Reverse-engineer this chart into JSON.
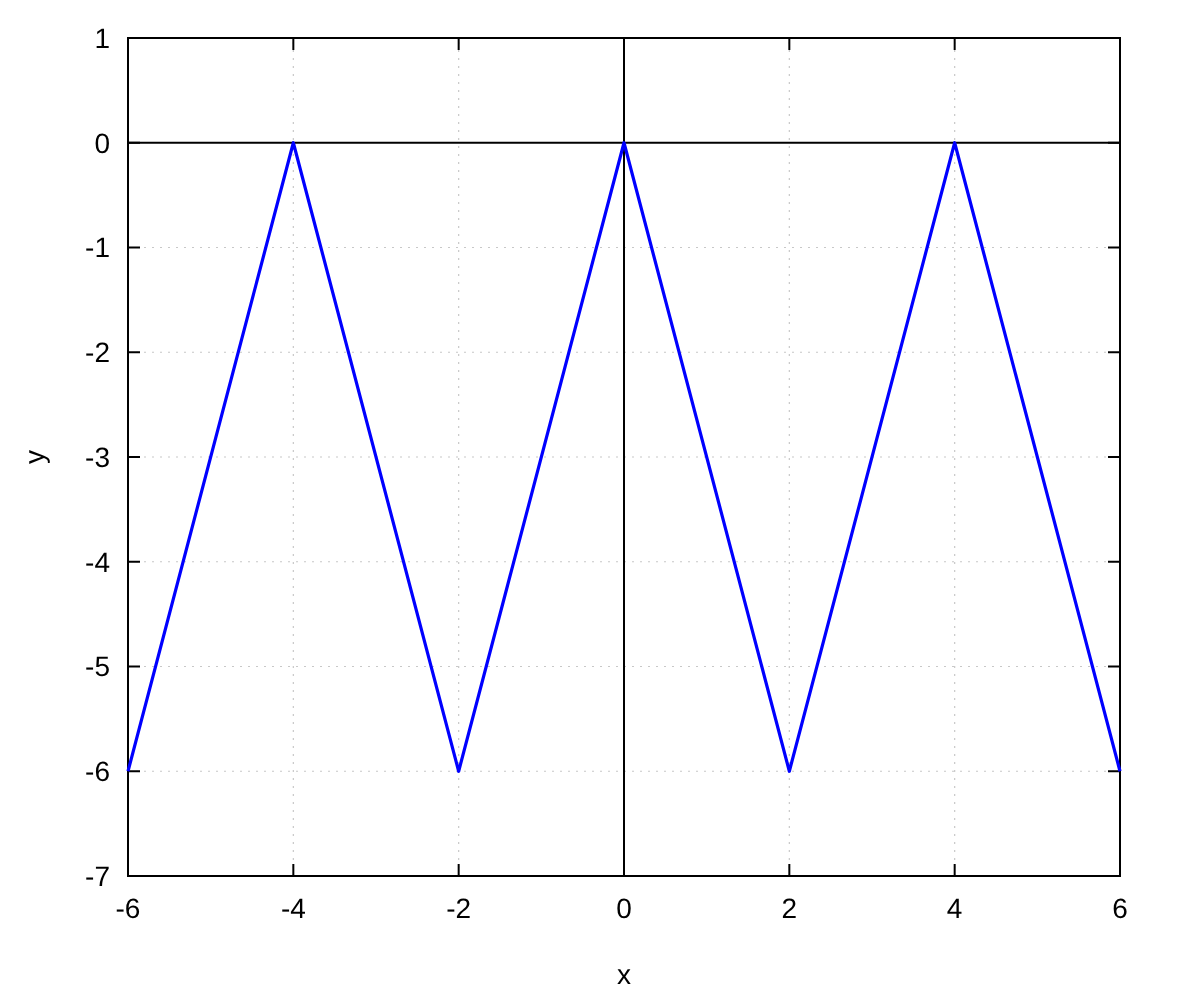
{
  "chart_data": {
    "type": "line",
    "xlabel": "x",
    "ylabel": "y",
    "x": [
      -6,
      -4,
      -2,
      0,
      2,
      4,
      6
    ],
    "series": [
      {
        "color": "#0000ff",
        "values": [
          -6,
          0,
          -6,
          0,
          -6,
          0,
          -6
        ]
      }
    ],
    "xlim": [
      -6,
      6
    ],
    "ylim": [
      -7,
      1
    ],
    "xticks": [
      -6,
      -4,
      -2,
      0,
      2,
      4,
      6
    ],
    "yticks": [
      -7,
      -6,
      -5,
      -4,
      -3,
      -2,
      -1,
      0,
      1
    ],
    "grid": true,
    "marker": "none",
    "line_style": "solid"
  }
}
